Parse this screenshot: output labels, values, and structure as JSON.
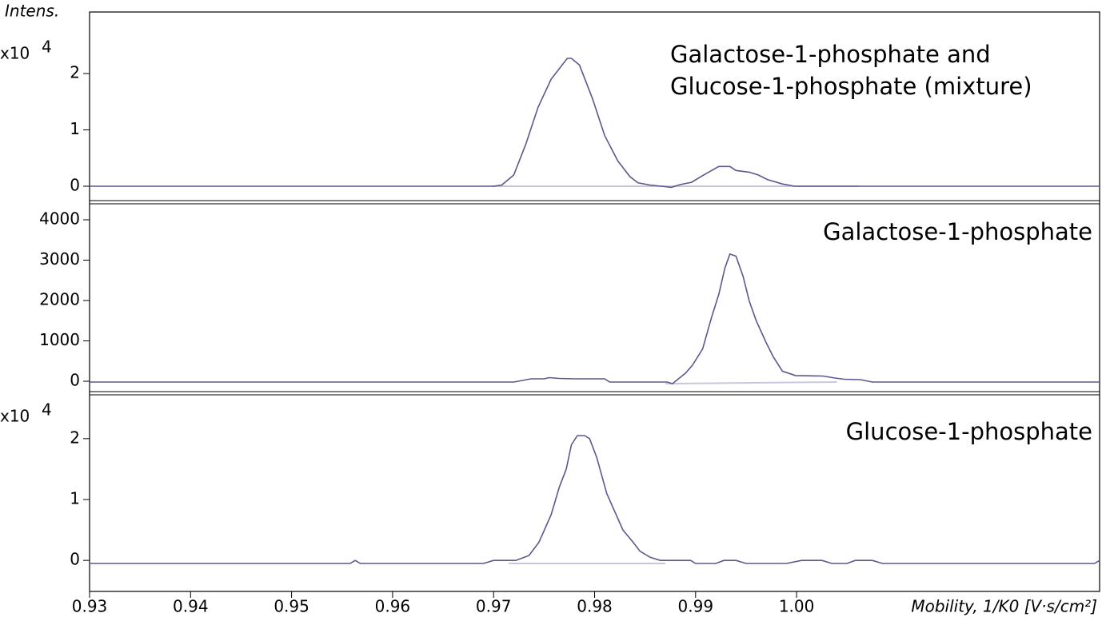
{
  "chart_data": [
    {
      "type": "line",
      "ylabel": "Intens.",
      "scale_label": "x10",
      "scale_power": "4",
      "annotation": [
        "Galactose-1-phosphate and",
        "Glucose-1-phosphate (mixture)"
      ],
      "color": "#5a588c",
      "xlim": [
        0.93,
        1.03
      ],
      "ylim": [
        -0.255,
        3.092
      ],
      "yticks": [
        0,
        1,
        2
      ],
      "x": [
        0.93,
        0.97,
        0.9708,
        0.972,
        0.9732,
        0.9744,
        0.9757,
        0.9773,
        0.9777,
        0.9785,
        0.9798,
        0.981,
        0.9823,
        0.9835,
        0.9843,
        0.9855,
        0.9866,
        0.9876,
        0.9885,
        0.9896,
        0.9908,
        0.9923,
        0.9934,
        0.994,
        0.9953,
        0.9962,
        0.9971,
        0.9986,
        0.9998,
        1.03
      ],
      "values": [
        0,
        0,
        0.02,
        0.2,
        0.75,
        1.4,
        1.9,
        2.27,
        2.27,
        2.15,
        1.55,
        0.9,
        0.45,
        0.17,
        0.06,
        0.02,
        0,
        -0.02,
        0.03,
        0.07,
        0.2,
        0.35,
        0.35,
        0.28,
        0.25,
        0.2,
        0.12,
        0.04,
        0,
        0
      ],
      "baseline": {
        "color": "#c9c7dd",
        "x": [
          0.9698,
          1.0062
        ],
        "values": [
          0,
          0
        ]
      }
    },
    {
      "type": "line",
      "annotation": [
        "Galactose-1-phosphate"
      ],
      "color": "#5a588c",
      "xlim": [
        0.93,
        1.03
      ],
      "ylim": [
        -257,
        4396
      ],
      "yticks": [
        0,
        1000,
        2000,
        3000,
        4000
      ],
      "x": [
        0.93,
        0.972,
        0.9737,
        0.975,
        0.9755,
        0.9765,
        0.978,
        0.981,
        0.9815,
        0.9872,
        0.9877,
        0.989,
        0.9897,
        0.9907,
        0.9916,
        0.9923,
        0.9929,
        0.9934,
        0.994,
        0.9947,
        0.9953,
        0.996,
        0.997,
        0.9977,
        0.9986,
        0.9999,
        1.0026,
        1.0038,
        1.0047,
        1.0063,
        1.0075,
        1.03
      ],
      "values": [
        -20,
        -20,
        60,
        60,
        90,
        70,
        60,
        60,
        -20,
        -20,
        -60,
        200,
        400,
        800,
        1600,
        2150,
        2800,
        3150,
        3100,
        2600,
        2000,
        1500,
        950,
        600,
        250,
        140,
        130,
        80,
        50,
        40,
        -20,
        -20
      ],
      "baseline": {
        "color": "#c9c7dd",
        "x": [
          0.987,
          1.004
        ],
        "values": [
          -60,
          -20
        ]
      }
    },
    {
      "type": "line",
      "scale_label": "x10",
      "scale_power": "4",
      "annotation": [
        "Glucose-1-phosphate"
      ],
      "xlabel": "Mobility, 1/K0 [V·s/cm²]",
      "color": "#5a588c",
      "xlim": [
        0.93,
        1.03
      ],
      "ylim": [
        -0.51,
        2.72
      ],
      "yticks": [
        0,
        1,
        2
      ],
      "xticks": [
        0.93,
        0.94,
        0.95,
        0.96,
        0.97,
        0.98,
        0.99,
        {
          "value": 1,
          "label": "1.00"
        }
      ],
      "x": [
        0.93,
        0.9558,
        0.9563,
        0.9568,
        0.969,
        0.97,
        0.9722,
        0.9735,
        0.9745,
        0.9757,
        0.9765,
        0.9772,
        0.9777,
        0.9783,
        0.979,
        0.9795,
        0.9802,
        0.9812,
        0.982,
        0.9828,
        0.9838,
        0.9845,
        0.9855,
        0.9865,
        0.9895,
        0.99,
        0.992,
        0.9928,
        0.994,
        0.995,
        0.999,
        1.0005,
        1.0025,
        1.0035,
        1.005,
        1.0058,
        1.0075,
        1.0085,
        1.0295,
        1.03
      ],
      "values": [
        -0.05,
        -0.05,
        0,
        -0.05,
        -0.05,
        0,
        0,
        0.08,
        0.3,
        0.75,
        1.2,
        1.5,
        1.9,
        2.05,
        2.05,
        2,
        1.7,
        1.1,
        0.8,
        0.5,
        0.3,
        0.15,
        0.05,
        0,
        0,
        -0.05,
        -0.05,
        0,
        0,
        -0.05,
        -0.05,
        0,
        0,
        -0.05,
        -0.05,
        0,
        0,
        -0.05,
        -0.05,
        0
      ],
      "baseline": {
        "color": "#c9c7dd",
        "x": [
          0.9715,
          0.987
        ],
        "values": [
          -0.05,
          -0.05
        ]
      }
    }
  ]
}
